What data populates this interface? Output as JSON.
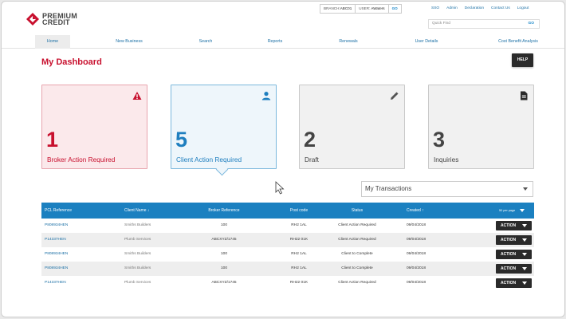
{
  "brand": {
    "line1": "PREMIUM",
    "line2": "CREDIT",
    "logo_color": "#c8102e"
  },
  "header": {
    "branch_label": "BRANCH:",
    "branch_value": "ABC01",
    "user_label": "USER:",
    "user_value": "AWaters",
    "go_label": "GO",
    "links": [
      "SSO",
      "Admin",
      "Declaration",
      "Contact Us",
      "Logout"
    ],
    "quick_find_placeholder": "Quick Find",
    "quick_find_go": "GO"
  },
  "nav": {
    "items": [
      "Home",
      "New Business",
      "Search",
      "Reports",
      "Renewals",
      "User Details",
      "Cost Benefit Analysis"
    ],
    "active": "Home"
  },
  "page_title": "My Dashboard",
  "help_label": "HELP",
  "cards": [
    {
      "count": "1",
      "label": "Broker Action Required",
      "icon": "warning-icon"
    },
    {
      "count": "5",
      "label": "Client Action Required",
      "icon": "person-icon"
    },
    {
      "count": "2",
      "label": "Draft",
      "icon": "pencil-icon"
    },
    {
      "count": "3",
      "label": "Inquiries",
      "icon": "document-icon"
    }
  ],
  "transactions_select": {
    "value": "My Transactions"
  },
  "table": {
    "headers": [
      "PCL Reference",
      "Client Name",
      "Broker Reference",
      "Post code",
      "Status",
      "Created",
      "50 per page"
    ],
    "rows": [
      {
        "ref": "P808934HEN",
        "client": "Smiths Builders",
        "broker_ref": "100",
        "postcode": "RH2 1AL",
        "status": "Client Action Required",
        "created": "09/04/2018",
        "action": "ACTION"
      },
      {
        "ref": "P14337HEN",
        "client": "Plumb Services",
        "broker_ref": "ABCXYZ/1745",
        "postcode": "RH22 01K",
        "status": "Client Action Required",
        "created": "09/04/2018",
        "action": "ACTION"
      },
      {
        "ref": "P808934HEN",
        "client": "Smiths Builders",
        "broker_ref": "100",
        "postcode": "RH2 1AL",
        "status": "Client to Complete",
        "created": "09/04/2018",
        "action": "ACTION"
      },
      {
        "ref": "P808934HEN",
        "client": "Smiths Builders",
        "broker_ref": "100",
        "postcode": "RH2 1AL",
        "status": "Client to Complete",
        "created": "09/04/2018",
        "action": "ACTION"
      },
      {
        "ref": "P14337HEN",
        "client": "Plumb Services",
        "broker_ref": "ABCXYZ/1745",
        "postcode": "RH22 01K",
        "status": "Client Action Required",
        "created": "09/04/2018",
        "action": "ACTION"
      }
    ]
  },
  "colors": {
    "brand_red": "#c8102e",
    "accent_blue": "#1b80c0",
    "dark_button": "#2a2a2a"
  }
}
